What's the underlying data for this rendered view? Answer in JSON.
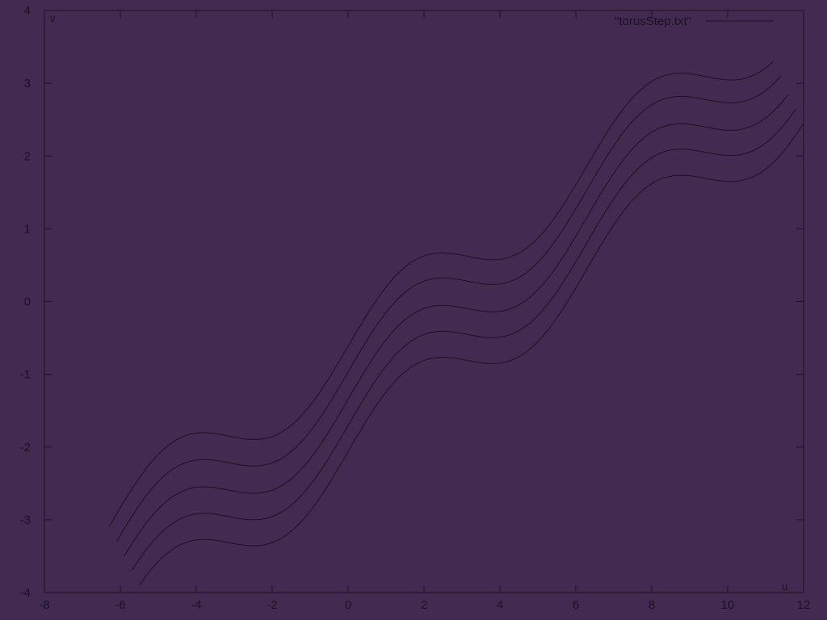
{
  "colors": {
    "background": "#432a50",
    "ink": "#1e1024"
  },
  "chart_data": {
    "type": "line",
    "title": "",
    "xlabel": "u",
    "ylabel": "v",
    "xlim": [
      -8,
      12
    ],
    "ylim": [
      -4,
      4
    ],
    "xticks": [
      -8,
      -6,
      -4,
      -2,
      0,
      2,
      4,
      6,
      8,
      10,
      12
    ],
    "yticks": [
      -4,
      -3,
      -2,
      -1,
      0,
      1,
      2,
      3,
      4
    ],
    "grid": false,
    "legend": {
      "position": "top-right",
      "entries": [
        "\"torusStep.txt\""
      ]
    },
    "series": [
      {
        "u_start": -6.3,
        "u_end": 11.2,
        "v_at_start": -3.1,
        "v_at_end": 3.3
      },
      {
        "u_start": -6.1,
        "u_end": 11.4,
        "v_at_start": -3.3,
        "v_at_end": 3.1
      },
      {
        "u_start": -5.9,
        "u_end": 11.6,
        "v_at_start": -3.5,
        "v_at_end": 2.85
      },
      {
        "u_start": -5.7,
        "u_end": 11.8,
        "v_at_start": -3.7,
        "v_at_end": 2.65
      },
      {
        "u_start": -5.5,
        "u_end": 12.0,
        "v_at_start": -3.9,
        "v_at_end": 2.45
      }
    ]
  }
}
